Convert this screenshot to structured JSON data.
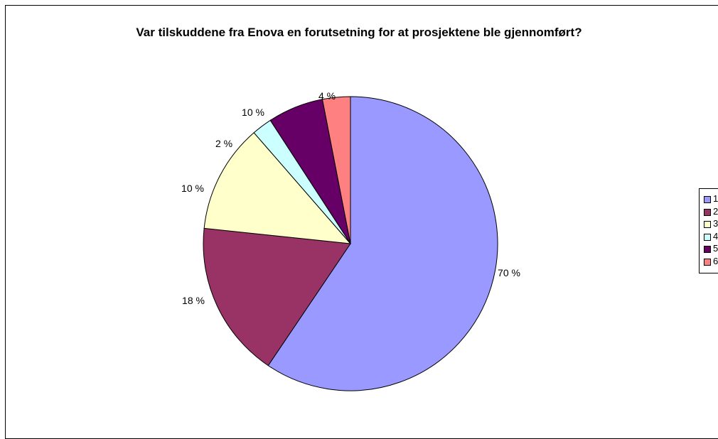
{
  "chart_data": {
    "type": "pie",
    "title": "Var tilskuddene fra Enova en forutsetning for at prosjektene ble gjennomført?",
    "categories": [
      "1",
      "2",
      "3",
      "4",
      "5",
      "6"
    ],
    "values": [
      70,
      18,
      10,
      2,
      10,
      4
    ],
    "labels": [
      "70 %",
      "18 %",
      "10 %",
      "2 %",
      "10 %",
      "4 %"
    ],
    "colors": [
      "#9999FF",
      "#993366",
      "#FFFFCC",
      "#CCFFFF",
      "#660066",
      "#FF8080"
    ],
    "legend": "right",
    "legend_labels": [
      "1",
      "2",
      "3",
      "4",
      "5",
      "6"
    ]
  }
}
